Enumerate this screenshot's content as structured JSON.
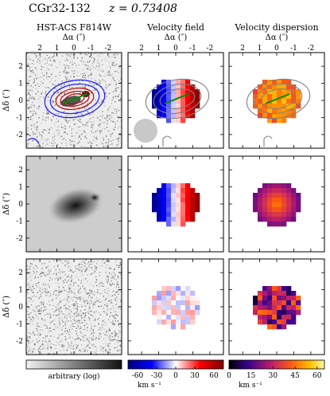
{
  "header": {
    "object_name": "CGr32-132",
    "redshift_label": "z = 0.73408"
  },
  "columns": [
    {
      "title": "HST-ACS F814W"
    },
    {
      "title": "Velocity field"
    },
    {
      "title": "Velocity dispersion"
    }
  ],
  "axes": {
    "x_label": "Δα (″)",
    "y_label": "Δδ (″)",
    "x_ticks": [
      "2",
      "1",
      "0",
      "-1",
      "-2"
    ],
    "y_ticks": [
      "2",
      "1",
      "0",
      "-1",
      "-2"
    ]
  },
  "colorbars": [
    {
      "label": "arbitrary (log)",
      "ticks": [],
      "colors": [
        "#f2f2f2",
        "#111111"
      ]
    },
    {
      "label": "km s⁻¹",
      "ticks": [
        "-60",
        "-30",
        "0",
        "30",
        "60"
      ],
      "range": [
        -75,
        75
      ],
      "colors": [
        "#000080",
        "#0000ff",
        "#ffffff",
        "#ff0000",
        "#800000"
      ]
    },
    {
      "label": "km s⁻¹",
      "ticks": [
        "0",
        "15",
        "30",
        "45",
        "60"
      ],
      "range": [
        0,
        65
      ],
      "colors": [
        "#000000",
        "#3a0090",
        "#c0206a",
        "#ff5a10",
        "#ffc000",
        "#fff8a0"
      ]
    }
  ],
  "chart_data": {
    "type": "heatmap",
    "grid": "3 rows × 3 columns",
    "rows": [
      "observed",
      "model",
      "residual"
    ],
    "x_range_arcsec": [
      2.5,
      -2.5
    ],
    "y_range_arcsec": [
      -2.5,
      2.5
    ],
    "velocity_range_kms": [
      -75,
      75
    ],
    "dispersion_range_kms": [
      0,
      65
    ]
  }
}
